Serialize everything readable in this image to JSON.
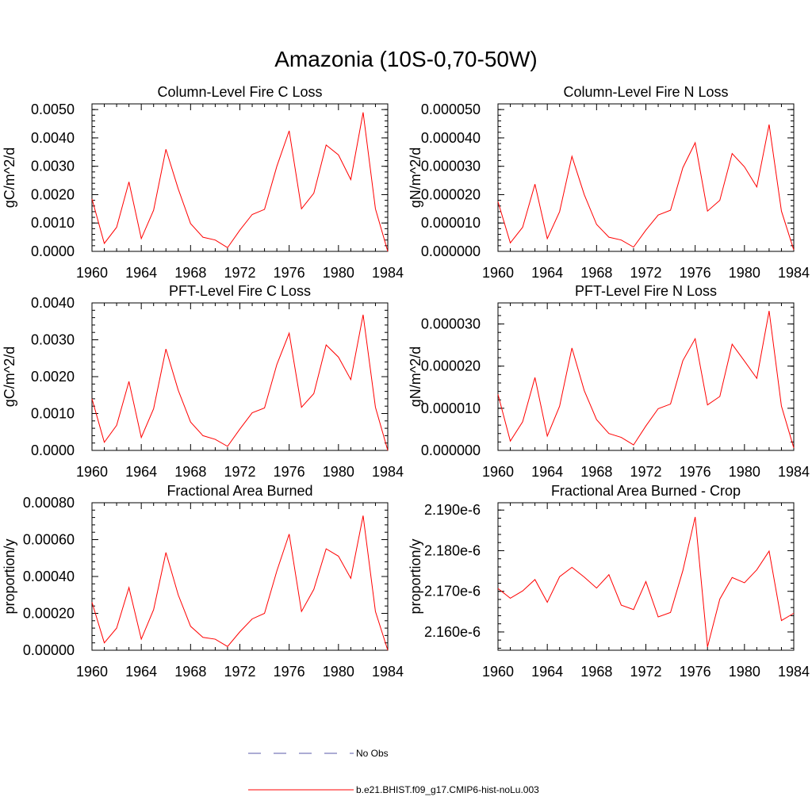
{
  "figure": {
    "title": "Amazonia (10S-0,70-50W)",
    "line_color": "#ff0000",
    "obs_color": "#5a5aa8",
    "legend": [
      {
        "label": "No Obs",
        "style": "dashed",
        "color": "#5a5aa8"
      },
      {
        "label": "b.e21.BHIST.f09_g17.CMIP6-hist-noLu.003",
        "style": "solid",
        "color": "#ff0000"
      }
    ]
  },
  "chart_data": [
    {
      "type": "line",
      "title": "Column-Level Fire C Loss",
      "ylabel": "gC/m^2/d",
      "xlim": [
        1960,
        1984
      ],
      "ylim": [
        0,
        0.0052
      ],
      "xticks": [
        "1960",
        "1964",
        "1968",
        "1972",
        "1976",
        "1980",
        "1984"
      ],
      "yticks": [
        {
          "value": 0,
          "label": "0.0000"
        },
        {
          "value": 0.001,
          "label": "0.0010"
        },
        {
          "value": 0.002,
          "label": "0.0020"
        },
        {
          "value": 0.003,
          "label": "0.0030"
        },
        {
          "value": 0.004,
          "label": "0.0040"
        },
        {
          "value": 0.005,
          "label": "0.0050"
        }
      ],
      "x": [
        1960,
        1961,
        1962,
        1963,
        1964,
        1965,
        1966,
        1967,
        1968,
        1969,
        1970,
        1971,
        1972,
        1973,
        1974,
        1975,
        1976,
        1977,
        1978,
        1979,
        1980,
        1981,
        1982,
        1983,
        1984
      ],
      "series": [
        {
          "values": [
            0.00185,
            0.00028,
            0.00085,
            0.00245,
            0.00045,
            0.00145,
            0.0036,
            0.0022,
            0.00098,
            0.0005,
            0.0004,
            0.00013,
            0.00075,
            0.0013,
            0.00148,
            0.003,
            0.00425,
            0.0015,
            0.00205,
            0.00375,
            0.0034,
            0.00253,
            0.0049,
            0.0015,
            0.0
          ]
        }
      ]
    },
    {
      "type": "line",
      "title": "Column-Level Fire N Loss",
      "ylabel": "gN/m^2/d",
      "xlim": [
        1960,
        1984
      ],
      "ylim": [
        0,
        5.2e-05
      ],
      "xticks": [
        "1960",
        "1964",
        "1968",
        "1972",
        "1976",
        "1980",
        "1984"
      ],
      "yticks": [
        {
          "value": 0,
          "label": "0.000000"
        },
        {
          "value": 1e-05,
          "label": "0.000010"
        },
        {
          "value": 2e-05,
          "label": "0.000020"
        },
        {
          "value": 3e-05,
          "label": "0.000030"
        },
        {
          "value": 4e-05,
          "label": "0.000040"
        },
        {
          "value": 5e-05,
          "label": "0.000050"
        }
      ],
      "x": [
        1960,
        1961,
        1962,
        1963,
        1964,
        1965,
        1966,
        1967,
        1968,
        1969,
        1970,
        1971,
        1972,
        1973,
        1974,
        1975,
        1976,
        1977,
        1978,
        1979,
        1980,
        1981,
        1982,
        1983,
        1984
      ],
      "series": [
        {
          "values": [
            1.75e-05,
            3e-06,
            8.5e-06,
            2.37e-05,
            4.5e-06,
            1.4e-05,
            3.35e-05,
            2e-05,
            9.5e-06,
            5e-06,
            4e-06,
            1.5e-06,
            7.5e-06,
            1.28e-05,
            1.45e-05,
            2.95e-05,
            3.83e-05,
            1.42e-05,
            1.8e-05,
            3.45e-05,
            2.98e-05,
            2.27e-05,
            4.47e-05,
            1.42e-05,
            5e-07
          ]
        }
      ]
    },
    {
      "type": "line",
      "title": "PFT-Level Fire C Loss",
      "ylabel": "gC/m^2/d",
      "xlim": [
        1960,
        1984
      ],
      "ylim": [
        0,
        0.004
      ],
      "xticks": [
        "1960",
        "1964",
        "1968",
        "1972",
        "1976",
        "1980",
        "1984"
      ],
      "yticks": [
        {
          "value": 0,
          "label": "0.0000"
        },
        {
          "value": 0.001,
          "label": "0.0010"
        },
        {
          "value": 0.002,
          "label": "0.0020"
        },
        {
          "value": 0.003,
          "label": "0.0030"
        },
        {
          "value": 0.004,
          "label": "0.0040"
        }
      ],
      "x": [
        1960,
        1961,
        1962,
        1963,
        1964,
        1965,
        1966,
        1967,
        1968,
        1969,
        1970,
        1971,
        1972,
        1973,
        1974,
        1975,
        1976,
        1977,
        1978,
        1979,
        1980,
        1981,
        1982,
        1983,
        1984
      ],
      "series": [
        {
          "values": [
            0.0014,
            0.00022,
            0.00068,
            0.00187,
            0.00035,
            0.00113,
            0.00275,
            0.00163,
            0.00077,
            0.0004,
            0.0003,
            0.00011,
            0.00058,
            0.00102,
            0.00115,
            0.00233,
            0.00318,
            0.00117,
            0.00154,
            0.00286,
            0.00253,
            0.00192,
            0.00368,
            0.00117,
            0.0
          ]
        }
      ]
    },
    {
      "type": "line",
      "title": "PFT-Level Fire N Loss",
      "ylabel": "gN/m^2/d",
      "xlim": [
        1960,
        1984
      ],
      "ylim": [
        0,
        3.5e-05
      ],
      "xticks": [
        "1960",
        "1964",
        "1968",
        "1972",
        "1976",
        "1980",
        "1984"
      ],
      "yticks": [
        {
          "value": 0,
          "label": "0.000000"
        },
        {
          "value": 1e-05,
          "label": "0.000010"
        },
        {
          "value": 2e-05,
          "label": "0.000020"
        },
        {
          "value": 3e-05,
          "label": "0.000030"
        }
      ],
      "x": [
        1960,
        1961,
        1962,
        1963,
        1964,
        1965,
        1966,
        1967,
        1968,
        1969,
        1970,
        1971,
        1972,
        1973,
        1974,
        1975,
        1976,
        1977,
        1978,
        1979,
        1980,
        1981,
        1982,
        1983,
        1984
      ],
      "series": [
        {
          "values": [
            1.33e-05,
            2.2e-06,
            6.8e-06,
            1.73e-05,
            3.4e-06,
            1.05e-05,
            2.43e-05,
            1.42e-05,
            7.3e-06,
            4e-06,
            3.1e-06,
            1.3e-06,
            5.8e-06,
            9.9e-06,
            1.1e-05,
            2.13e-05,
            2.65e-05,
            1.08e-05,
            1.28e-05,
            2.52e-05,
            2.12e-05,
            1.71e-05,
            3.31e-05,
            1.05e-05,
            6e-07
          ]
        }
      ]
    },
    {
      "type": "line",
      "title": "Fractional Area Burned",
      "ylabel": "proportion/y",
      "xlim": [
        1960,
        1984
      ],
      "ylim": [
        0,
        0.0008
      ],
      "xticks": [
        "1960",
        "1964",
        "1968",
        "1972",
        "1976",
        "1980",
        "1984"
      ],
      "yticks": [
        {
          "value": 0,
          "label": "0.00000"
        },
        {
          "value": 0.0002,
          "label": "0.00020"
        },
        {
          "value": 0.0004,
          "label": "0.00040"
        },
        {
          "value": 0.0006,
          "label": "0.00060"
        },
        {
          "value": 0.0008,
          "label": "0.00080"
        }
      ],
      "x": [
        1960,
        1961,
        1962,
        1963,
        1964,
        1965,
        1966,
        1967,
        1968,
        1969,
        1970,
        1971,
        1972,
        1973,
        1974,
        1975,
        1976,
        1977,
        1978,
        1979,
        1980,
        1981,
        1982,
        1983,
        1984
      ],
      "series": [
        {
          "values": [
            0.00026,
            4e-05,
            0.00012,
            0.00034,
            6e-05,
            0.00022,
            0.00053,
            0.0003,
            0.00013,
            7e-05,
            6e-05,
            2e-05,
            0.0001,
            0.00017,
            0.0002,
            0.00043,
            0.00063,
            0.00021,
            0.00033,
            0.00055,
            0.00051,
            0.00039,
            0.00073,
            0.00021,
            0.0
          ]
        }
      ]
    },
    {
      "type": "line",
      "title": "Fractional Area Burned - Crop",
      "ylabel": "proportion/y",
      "xlim": [
        1960,
        1984
      ],
      "ylim": [
        2.1555e-06,
        2.1918e-06
      ],
      "xticks": [
        "1960",
        "1964",
        "1968",
        "1972",
        "1976",
        "1980",
        "1984"
      ],
      "yticks": [
        {
          "value": 2.16e-06,
          "label": "2.160e-6"
        },
        {
          "value": 2.17e-06,
          "label": "2.170e-6"
        },
        {
          "value": 2.18e-06,
          "label": "2.180e-6"
        },
        {
          "value": 2.19e-06,
          "label": "2.190e-6"
        }
      ],
      "x": [
        1960,
        1961,
        1962,
        1963,
        1964,
        1965,
        1966,
        1967,
        1968,
        1969,
        1970,
        1971,
        1972,
        1973,
        1974,
        1975,
        1976,
        1977,
        1978,
        1979,
        1980,
        1981,
        1982,
        1983,
        1984
      ],
      "series": [
        {
          "values": [
            2.1707e-06,
            2.1683e-06,
            2.1701e-06,
            2.1729e-06,
            2.1673e-06,
            2.1736e-06,
            2.1759e-06,
            2.1735e-06,
            2.1708e-06,
            2.1741e-06,
            2.1666e-06,
            2.1655e-06,
            2.1724e-06,
            2.1637e-06,
            2.1648e-06,
            2.1751e-06,
            2.1883e-06,
            2.1563e-06,
            2.1681e-06,
            2.1734e-06,
            2.1721e-06,
            2.1753e-06,
            2.1799e-06,
            2.1628e-06,
            2.1646e-06
          ]
        }
      ]
    }
  ]
}
